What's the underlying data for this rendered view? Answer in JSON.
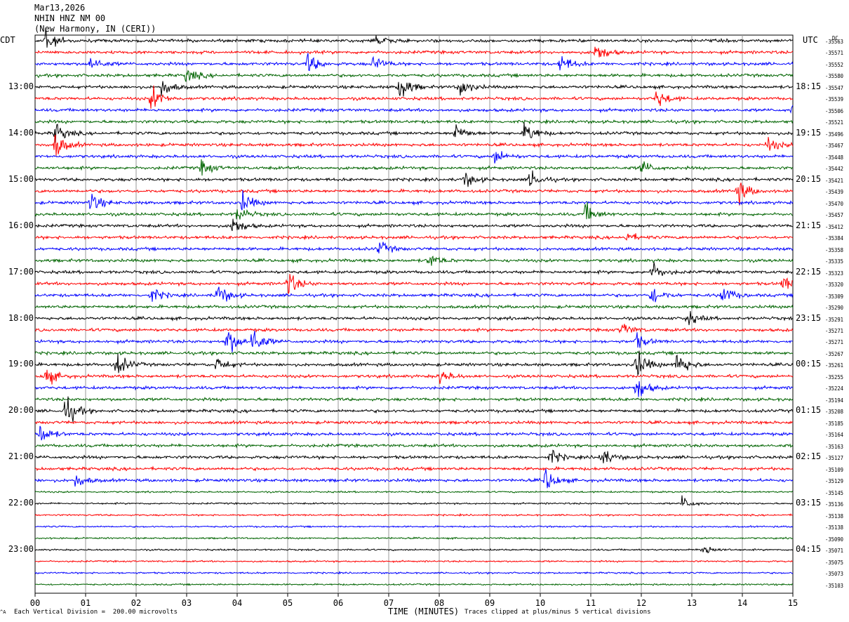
{
  "header": {
    "line1": "Mar13,2026",
    "line2": "NHIN HNZ NM 00",
    "line3": "(New Harmony, IN (CERI))"
  },
  "left_tz": "CDT",
  "right_tz": "UTC",
  "left_times": [
    "13:00",
    "14:00",
    "15:00",
    "16:00",
    "17:00",
    "18:00",
    "19:00",
    "20:00",
    "21:00",
    "22:00",
    "23:00"
  ],
  "right_times": [
    "18:15",
    "19:15",
    "20:15",
    "21:15",
    "22:15",
    "23:15",
    "00:15",
    "01:15",
    "02:15",
    "03:15",
    "04:15"
  ],
  "dc_label": "DC",
  "offsets": [
    "-35563",
    "-35571",
    "-35552",
    "-35580",
    "-35547",
    "-35539",
    "-35506",
    "-35521",
    "-35496",
    "-35467",
    "-35448",
    "-35442",
    "-35421",
    "-35439",
    "-35470",
    "-35457",
    "-35412",
    "-35384",
    "-35358",
    "-35335",
    "-35323",
    "-35320",
    "-35309",
    "-35290",
    "-35291",
    "-35271",
    "-35271",
    "-35267",
    "-35261",
    "-35255",
    "-35224",
    "-35194",
    "-35208",
    "-35185",
    "-35164",
    "-35163",
    "-35127",
    "-35109",
    "-35129",
    "-35145",
    "-35136",
    "-35138",
    "-35138",
    "-35090",
    "-35071",
    "-35075",
    "-35073",
    "-35103"
  ],
  "footer": {
    "left": "Each Vertical Division =  200.00 microvolts",
    "right": "Traces clipped at plus/minus 5 vertical divisions",
    "corner": "^A"
  },
  "chart_data": {
    "type": "line",
    "title": "NHIN HNZ NM 00",
    "xlabel": "TIME (MINUTES)",
    "x_ticks": [
      "00",
      "01",
      "02",
      "03",
      "04",
      "05",
      "06",
      "07",
      "08",
      "09",
      "10",
      "11",
      "12",
      "13",
      "14",
      "15"
    ],
    "xlim": [
      0,
      15
    ],
    "grid": true,
    "trace_count": 48,
    "trace_minutes": 15,
    "trace_colors": [
      "#000000",
      "#ff0000",
      "#0000ff",
      "#006400"
    ],
    "vertical_division_microvolts": 200.0,
    "clip_divisions": 5,
    "events": [
      {
        "trace": 0,
        "minute": 0.2,
        "amp": 5
      },
      {
        "trace": 0,
        "minute": 6.7,
        "amp": 3
      },
      {
        "trace": 1,
        "minute": 11.1,
        "amp": 4
      },
      {
        "trace": 2,
        "minute": 1.1,
        "amp": 3
      },
      {
        "trace": 2,
        "minute": 5.4,
        "amp": 4
      },
      {
        "trace": 2,
        "minute": 6.7,
        "amp": 3
      },
      {
        "trace": 2,
        "minute": 10.4,
        "amp": 4
      },
      {
        "trace": 3,
        "minute": 3.0,
        "amp": 3
      },
      {
        "trace": 4,
        "minute": 2.5,
        "amp": 4
      },
      {
        "trace": 4,
        "minute": 7.2,
        "amp": 6
      },
      {
        "trace": 4,
        "minute": 8.4,
        "amp": 4
      },
      {
        "trace": 5,
        "minute": 2.3,
        "amp": 5
      },
      {
        "trace": 5,
        "minute": 12.3,
        "amp": 4
      },
      {
        "trace": 6,
        "minute": 15.0,
        "amp": 5
      },
      {
        "trace": 8,
        "minute": 0.4,
        "amp": 4
      },
      {
        "trace": 8,
        "minute": 8.3,
        "amp": 4
      },
      {
        "trace": 8,
        "minute": 9.7,
        "amp": 5
      },
      {
        "trace": 9,
        "minute": 0.4,
        "amp": 5
      },
      {
        "trace": 9,
        "minute": 14.5,
        "amp": 3
      },
      {
        "trace": 10,
        "minute": 9.1,
        "amp": 3
      },
      {
        "trace": 11,
        "minute": 3.3,
        "amp": 3
      },
      {
        "trace": 11,
        "minute": 12.0,
        "amp": 3
      },
      {
        "trace": 12,
        "minute": 8.5,
        "amp": 3
      },
      {
        "trace": 12,
        "minute": 9.8,
        "amp": 4
      },
      {
        "trace": 13,
        "minute": 13.9,
        "amp": 5
      },
      {
        "trace": 14,
        "minute": 1.1,
        "amp": 4
      },
      {
        "trace": 14,
        "minute": 4.1,
        "amp": 4
      },
      {
        "trace": 15,
        "minute": 4.0,
        "amp": 3
      },
      {
        "trace": 15,
        "minute": 10.9,
        "amp": 4
      },
      {
        "trace": 16,
        "minute": 3.9,
        "amp": 4
      },
      {
        "trace": 17,
        "minute": 11.7,
        "amp": 2
      },
      {
        "trace": 18,
        "minute": 6.8,
        "amp": 3
      },
      {
        "trace": 19,
        "minute": 7.8,
        "amp": 3
      },
      {
        "trace": 20,
        "minute": 12.2,
        "amp": 4
      },
      {
        "trace": 21,
        "minute": 5.0,
        "amp": 5
      },
      {
        "trace": 21,
        "minute": 14.8,
        "amp": 3
      },
      {
        "trace": 22,
        "minute": 3.6,
        "amp": 5
      },
      {
        "trace": 22,
        "minute": 2.3,
        "amp": 3
      },
      {
        "trace": 22,
        "minute": 13.6,
        "amp": 4
      },
      {
        "trace": 22,
        "minute": 12.2,
        "amp": 4
      },
      {
        "trace": 24,
        "minute": 12.9,
        "amp": 3
      },
      {
        "trace": 25,
        "minute": 11.6,
        "amp": 3
      },
      {
        "trace": 26,
        "minute": 3.8,
        "amp": 6
      },
      {
        "trace": 26,
        "minute": 4.3,
        "amp": 6
      },
      {
        "trace": 26,
        "minute": 11.9,
        "amp": 3
      },
      {
        "trace": 28,
        "minute": 1.6,
        "amp": 5
      },
      {
        "trace": 28,
        "minute": 3.6,
        "amp": 3
      },
      {
        "trace": 28,
        "minute": 11.9,
        "amp": 6
      },
      {
        "trace": 28,
        "minute": 12.7,
        "amp": 6
      },
      {
        "trace": 29,
        "minute": 0.2,
        "amp": 4
      },
      {
        "trace": 29,
        "minute": 8.0,
        "amp": 3
      },
      {
        "trace": 30,
        "minute": 11.9,
        "amp": 5
      },
      {
        "trace": 32,
        "minute": 0.6,
        "amp": 6
      },
      {
        "trace": 33,
        "minute": 15.0,
        "amp": 3
      },
      {
        "trace": 34,
        "minute": 0.1,
        "amp": 4
      },
      {
        "trace": 36,
        "minute": 10.2,
        "amp": 3
      },
      {
        "trace": 36,
        "minute": 11.2,
        "amp": 4
      },
      {
        "trace": 38,
        "minute": 0.8,
        "amp": 3
      },
      {
        "trace": 38,
        "minute": 10.1,
        "amp": 5
      },
      {
        "trace": 40,
        "minute": 12.8,
        "amp": 3
      },
      {
        "trace": 44,
        "minute": 13.2,
        "amp": 3
      }
    ]
  }
}
